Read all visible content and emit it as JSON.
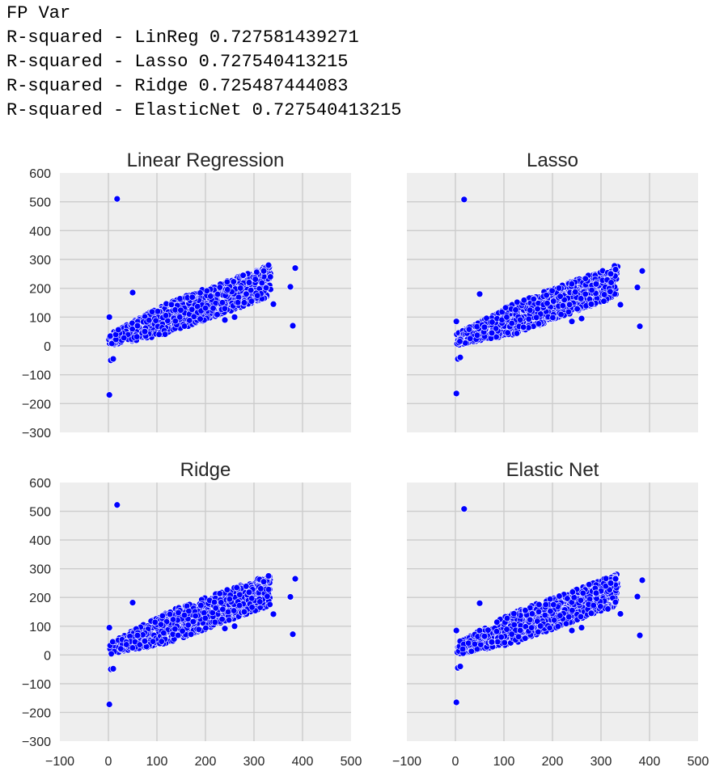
{
  "output_lines": [
    "FP Var",
    "R-squared - LinReg 0.727581439271",
    "R-squared - Lasso 0.727540413215",
    "R-squared - Ridge 0.725487444083",
    "R-squared - ElasticNet 0.727540413215"
  ],
  "colors": {
    "panel_bg": "#eeeeee",
    "grid": "#cccccc",
    "point": "#0000ff",
    "point_edge": "#ffffff"
  },
  "chart_data": [
    {
      "type": "scatter",
      "title": "Linear Regression",
      "xlim": [
        -100,
        500
      ],
      "ylim": [
        -300,
        600
      ],
      "xticks": [
        -100,
        0,
        100,
        200,
        300,
        400,
        500
      ],
      "yticks": [
        -300,
        -200,
        -100,
        0,
        100,
        200,
        300,
        400,
        500,
        600
      ],
      "show_x_ticklabels": false,
      "show_y_ticklabels": true,
      "grid": true,
      "points": [
        [
          18,
          510
        ],
        [
          2,
          -170
        ],
        [
          380,
          70
        ],
        [
          340,
          145
        ],
        [
          375,
          205
        ],
        [
          385,
          270
        ],
        [
          330,
          280
        ],
        [
          320,
          260
        ],
        [
          290,
          220
        ],
        [
          280,
          150
        ],
        [
          260,
          100
        ],
        [
          240,
          90
        ],
        [
          50,
          185
        ],
        [
          2,
          100
        ],
        [
          5,
          -50
        ],
        [
          10,
          -45
        ],
        [
          75,
          50
        ],
        [
          60,
          70
        ]
      ]
    },
    {
      "type": "scatter",
      "title": "Lasso",
      "xlim": [
        -100,
        500
      ],
      "ylim": [
        -300,
        600
      ],
      "xticks": [
        -100,
        0,
        100,
        200,
        300,
        400,
        500
      ],
      "yticks": [
        -300,
        -200,
        -100,
        0,
        100,
        200,
        300,
        400,
        500,
        600
      ],
      "show_x_ticklabels": false,
      "show_y_ticklabels": false,
      "grid": true,
      "points": [
        [
          18,
          508
        ],
        [
          2,
          -165
        ],
        [
          380,
          68
        ],
        [
          340,
          143
        ],
        [
          375,
          203
        ],
        [
          385,
          260
        ],
        [
          330,
          265
        ],
        [
          320,
          250
        ],
        [
          290,
          215
        ],
        [
          280,
          145
        ],
        [
          260,
          95
        ],
        [
          240,
          85
        ],
        [
          50,
          180
        ],
        [
          2,
          85
        ],
        [
          5,
          -45
        ],
        [
          10,
          -40
        ],
        [
          75,
          45
        ],
        [
          60,
          65
        ]
      ]
    },
    {
      "type": "scatter",
      "title": "Ridge",
      "xlim": [
        -100,
        500
      ],
      "ylim": [
        -300,
        600
      ],
      "xticks": [
        -100,
        0,
        100,
        200,
        300,
        400,
        500
      ],
      "yticks": [
        -300,
        -200,
        -100,
        0,
        100,
        200,
        300,
        400,
        500,
        600
      ],
      "show_x_ticklabels": true,
      "show_y_ticklabels": true,
      "grid": true,
      "points": [
        [
          18,
          522
        ],
        [
          2,
          -172
        ],
        [
          380,
          72
        ],
        [
          340,
          142
        ],
        [
          375,
          202
        ],
        [
          385,
          265
        ],
        [
          330,
          275
        ],
        [
          320,
          255
        ],
        [
          290,
          218
        ],
        [
          280,
          150
        ],
        [
          260,
          100
        ],
        [
          240,
          92
        ],
        [
          50,
          182
        ],
        [
          2,
          95
        ],
        [
          5,
          -50
        ],
        [
          10,
          -48
        ],
        [
          75,
          48
        ],
        [
          60,
          68
        ]
      ]
    },
    {
      "type": "scatter",
      "title": "Elastic Net",
      "xlim": [
        -100,
        500
      ],
      "ylim": [
        -300,
        600
      ],
      "xticks": [
        -100,
        0,
        100,
        200,
        300,
        400,
        500
      ],
      "yticks": [
        -300,
        -200,
        -100,
        0,
        100,
        200,
        300,
        400,
        500,
        600
      ],
      "show_x_ticklabels": true,
      "show_y_ticklabels": false,
      "grid": true,
      "points": [
        [
          18,
          508
        ],
        [
          2,
          -165
        ],
        [
          380,
          68
        ],
        [
          340,
          143
        ],
        [
          375,
          203
        ],
        [
          385,
          260
        ],
        [
          330,
          265
        ],
        [
          320,
          250
        ],
        [
          290,
          215
        ],
        [
          280,
          145
        ],
        [
          260,
          95
        ],
        [
          240,
          85
        ],
        [
          50,
          180
        ],
        [
          2,
          85
        ],
        [
          5,
          -45
        ],
        [
          10,
          -40
        ],
        [
          75,
          45
        ],
        [
          60,
          65
        ]
      ]
    }
  ]
}
